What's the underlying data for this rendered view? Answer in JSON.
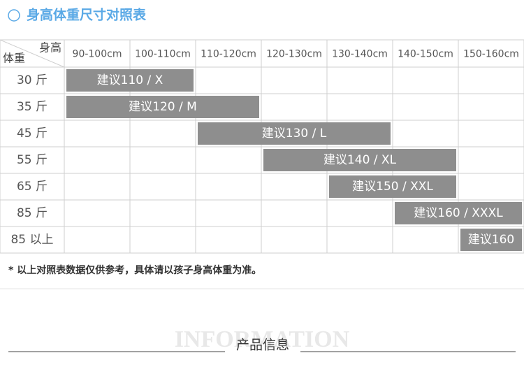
{
  "title": "身高体重尺寸对照表",
  "table": {
    "corner": {
      "column_label": "身高",
      "row_label": "体重"
    },
    "columns": [
      "90-100cm",
      "100-110cm",
      "110-120cm",
      "120-130cm",
      "130-140cm",
      "140-150cm",
      "150-160cm"
    ],
    "rows": [
      {
        "label": "30 斤",
        "suggestion": "建议110 / X"
      },
      {
        "label": "35 斤",
        "suggestion": "建议120 / M"
      },
      {
        "label": "45 斤",
        "suggestion": "建议130 / L"
      },
      {
        "label": "55 斤",
        "suggestion": "建议140 / XL"
      },
      {
        "label": "65 斤",
        "suggestion": "建议150 / XXL"
      },
      {
        "label": "85 斤",
        "suggestion": "建议160 / XXXL"
      },
      {
        "label": "85 以上",
        "suggestion": "建议160"
      }
    ]
  },
  "note": "* 以上对照表数据仅供参考，具体请以孩子身高体重为准。",
  "footer": {
    "watermark": "INFORMATION",
    "heading": "产品信息"
  }
}
